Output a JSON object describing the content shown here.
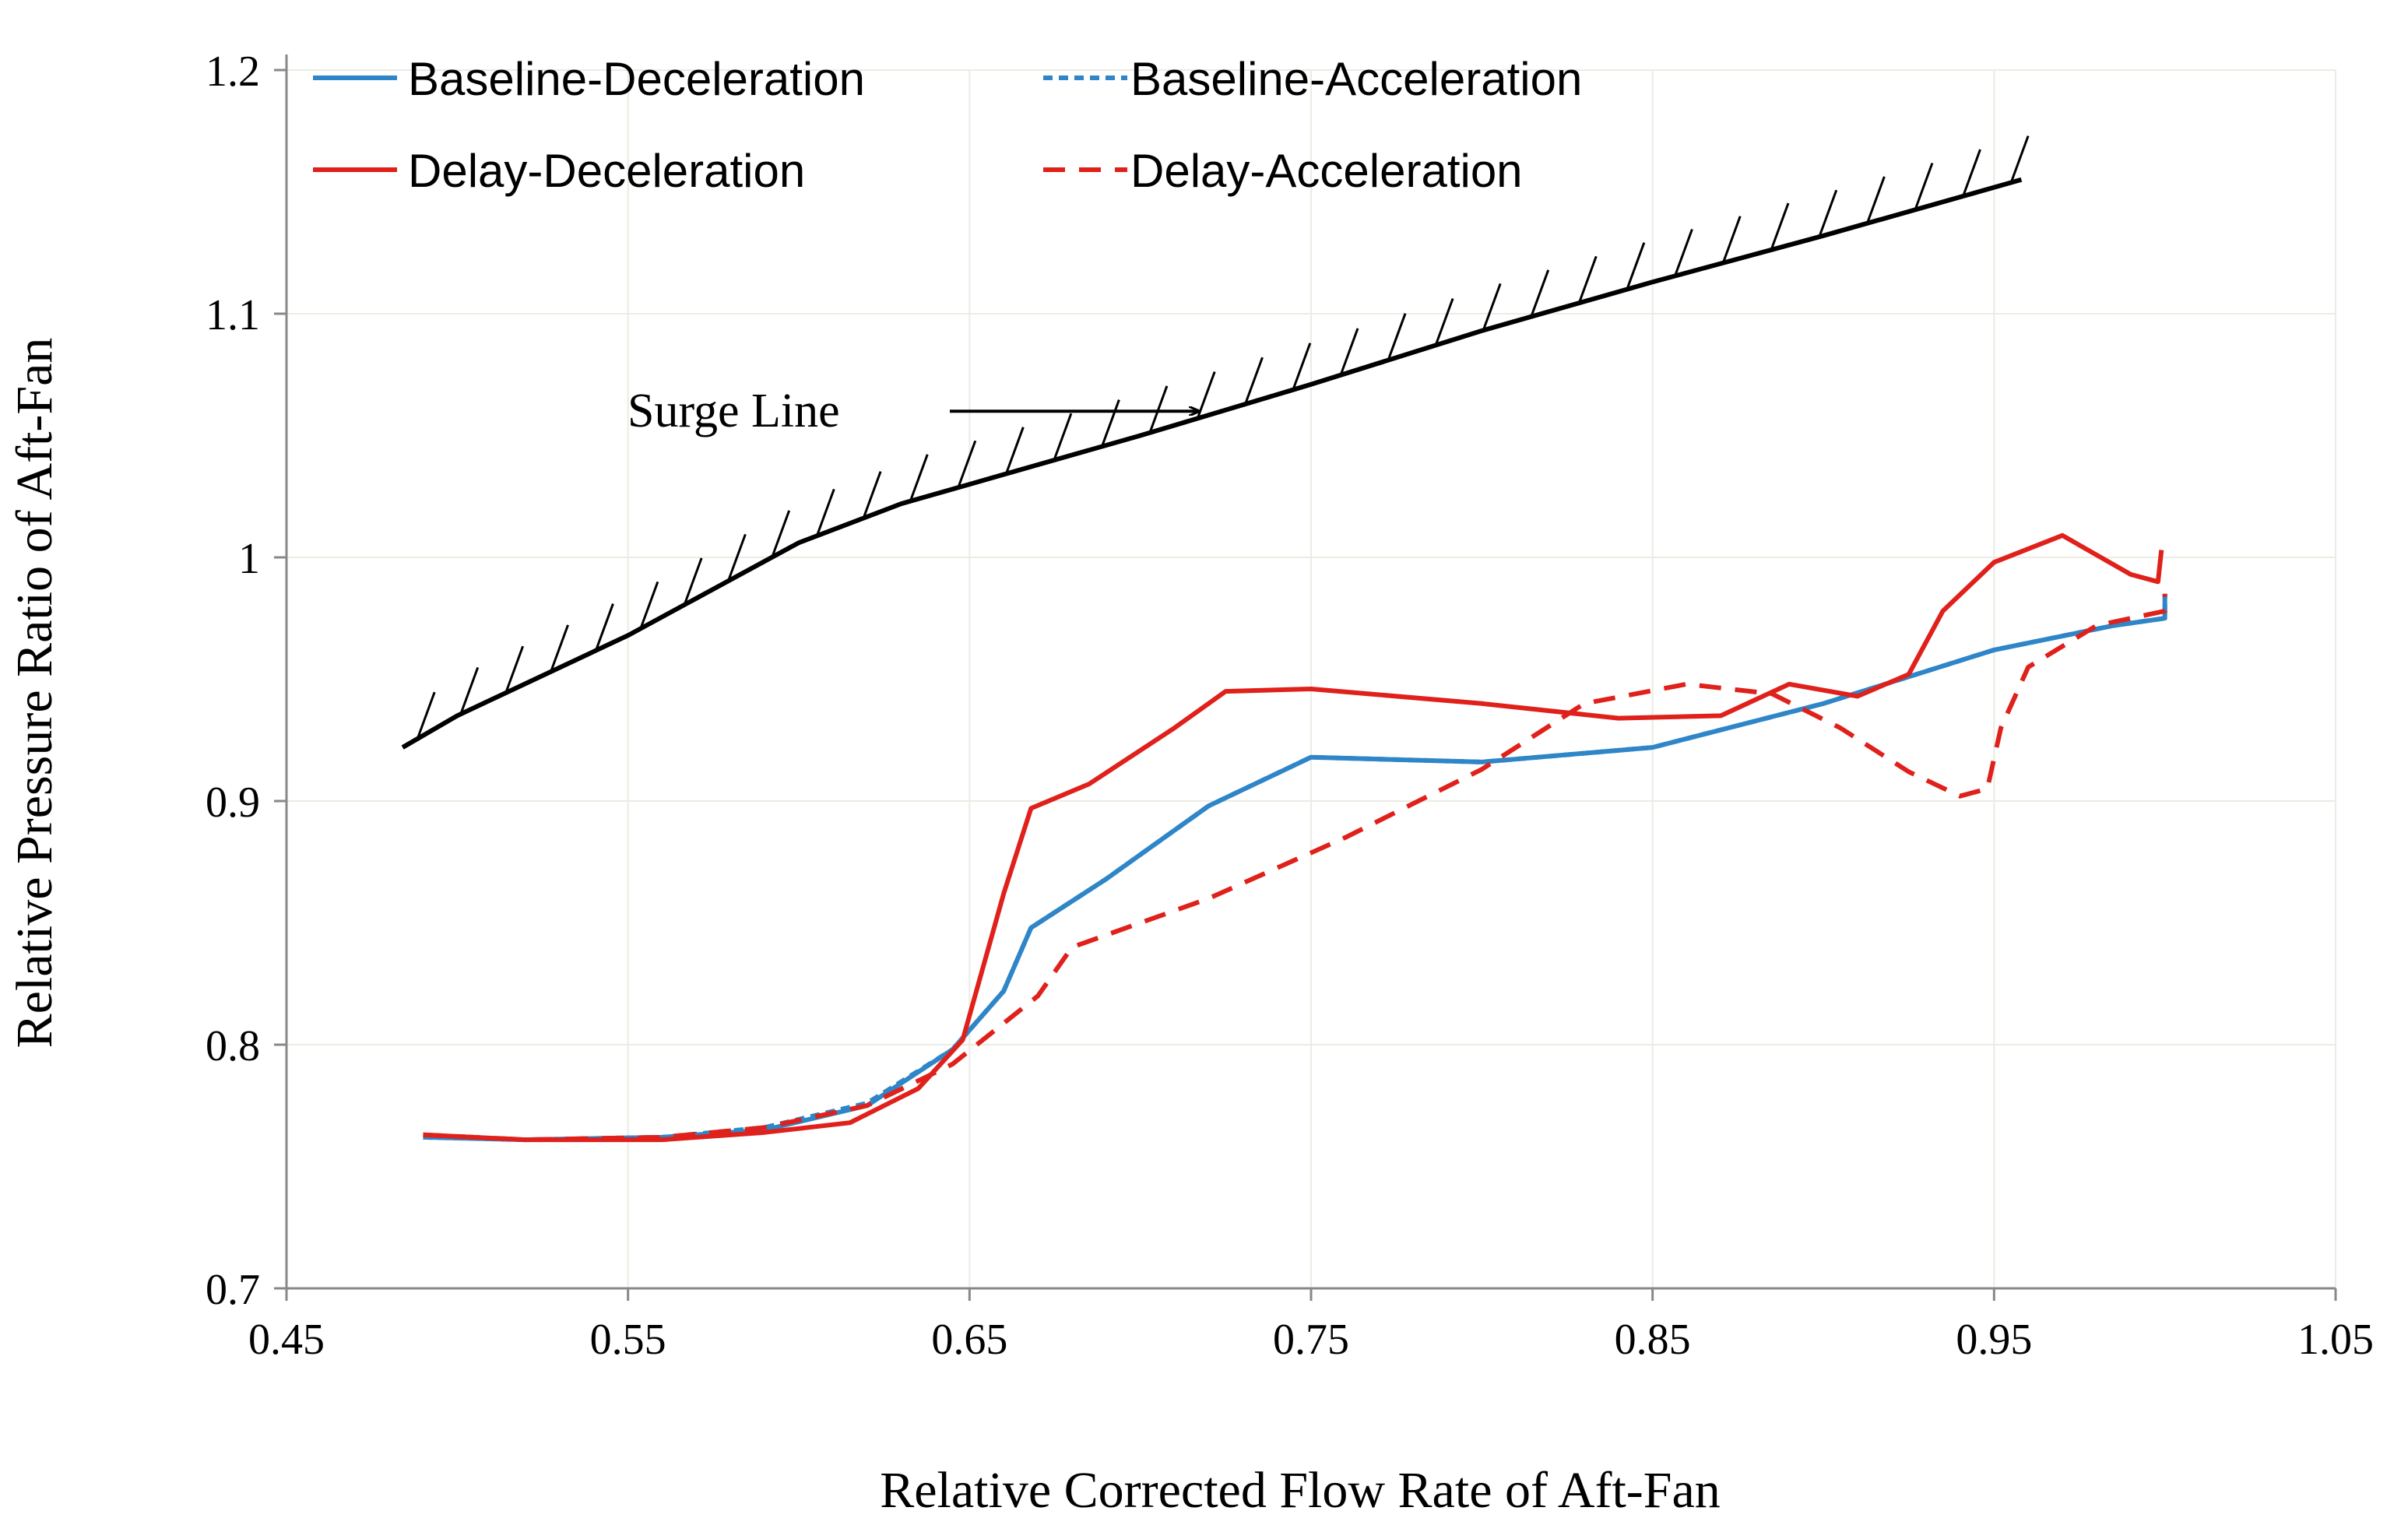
{
  "chart_data": {
    "type": "line",
    "title": "",
    "xlabel": "Relative Corrected Flow Rate of Aft-Fan",
    "ylabel": "Relative Pressure Ratio of Aft-Fan",
    "xlim": [
      0.45,
      1.05
    ],
    "ylim": [
      0.7,
      1.2
    ],
    "x_ticks": [
      0.45,
      0.55,
      0.65,
      0.75,
      0.85,
      0.95,
      1.05
    ],
    "x_tick_labels": [
      "0.45",
      "0.55",
      "0.65",
      "0.75",
      "0.85",
      "0.95",
      "1.05"
    ],
    "y_ticks": [
      0.7,
      0.8,
      0.9,
      1.0,
      1.1,
      1.2
    ],
    "y_tick_labels": [
      "0.7",
      "0.8",
      "0.9",
      "1",
      "1.1",
      "1.2"
    ],
    "grid": true,
    "legend_position": "top",
    "series": [
      {
        "name": "Baseline-Deceleration",
        "color": "#2e86c8",
        "style": "solid",
        "x": [
          0.49,
          0.52,
          0.56,
          0.59,
          0.62,
          0.645,
          0.66,
          0.668,
          0.69,
          0.72,
          0.75,
          0.8,
          0.85,
          0.9,
          0.95,
          0.985,
          1.0,
          1.0
        ],
        "y": [
          0.762,
          0.761,
          0.762,
          0.765,
          0.775,
          0.798,
          0.822,
          0.848,
          0.868,
          0.898,
          0.918,
          0.916,
          0.922,
          0.94,
          0.962,
          0.972,
          0.975,
          0.985
        ]
      },
      {
        "name": "Baseline-Acceleration",
        "color": "#2e86c8",
        "style": "dashed",
        "x": [
          0.49,
          0.52,
          0.56,
          0.59,
          0.62,
          0.645,
          0.66,
          0.668,
          0.69,
          0.72,
          0.75,
          0.8,
          0.85,
          0.9,
          0.95,
          0.985,
          1.0,
          1.0
        ],
        "y": [
          0.762,
          0.761,
          0.762,
          0.766,
          0.776,
          0.798,
          0.822,
          0.848,
          0.868,
          0.898,
          0.918,
          0.916,
          0.922,
          0.94,
          0.962,
          0.972,
          0.975,
          0.985
        ]
      },
      {
        "name": "Delay-Deceleration",
        "color": "#e0201b",
        "style": "solid",
        "x": [
          0.49,
          0.52,
          0.56,
          0.59,
          0.615,
          0.635,
          0.648,
          0.66,
          0.668,
          0.685,
          0.71,
          0.725,
          0.75,
          0.8,
          0.84,
          0.87,
          0.89,
          0.91,
          0.925,
          0.935,
          0.95,
          0.97,
          0.99,
          0.998,
          0.999
        ],
        "y": [
          0.763,
          0.761,
          0.761,
          0.764,
          0.768,
          0.782,
          0.802,
          0.862,
          0.897,
          0.907,
          0.93,
          0.945,
          0.946,
          0.94,
          0.934,
          0.935,
          0.948,
          0.943,
          0.952,
          0.978,
          0.998,
          1.009,
          0.993,
          0.99,
          1.003
        ]
      },
      {
        "name": "Delay-Acceleration",
        "color": "#e0201b",
        "style": "dashed",
        "x": [
          0.49,
          0.52,
          0.56,
          0.59,
          0.62,
          0.645,
          0.67,
          0.68,
          0.72,
          0.76,
          0.8,
          0.83,
          0.86,
          0.885,
          0.905,
          0.925,
          0.94,
          0.948,
          0.952,
          0.96,
          0.98,
          0.99,
          1.0,
          1.0
        ],
        "y": [
          0.763,
          0.761,
          0.762,
          0.766,
          0.775,
          0.792,
          0.82,
          0.84,
          0.86,
          0.885,
          0.913,
          0.94,
          0.948,
          0.944,
          0.93,
          0.912,
          0.902,
          0.905,
          0.93,
          0.955,
          0.972,
          0.975,
          0.978,
          0.985
        ]
      }
    ],
    "surge_line": {
      "label": "Surge Line",
      "x": [
        0.484,
        0.5,
        0.55,
        0.6,
        0.63,
        0.65,
        0.7,
        0.75,
        0.8,
        0.85,
        0.9,
        0.958
      ],
      "y": [
        0.922,
        0.935,
        0.968,
        1.006,
        1.022,
        1.03,
        1.05,
        1.071,
        1.093,
        1.113,
        1.132,
        1.155
      ]
    }
  },
  "legend": [
    {
      "label": "Baseline-Deceleration",
      "color": "#2e86c8",
      "style": "solid"
    },
    {
      "label": "Baseline-Acceleration",
      "color": "#2e86c8",
      "style": "dashed"
    },
    {
      "label": "Delay-Deceleration",
      "color": "#e0201b",
      "style": "solid"
    },
    {
      "label": "Delay-Acceleration",
      "color": "#e0201b",
      "style": "dashed"
    }
  ],
  "annotation": {
    "text": "Surge Line",
    "points_to": [
      0.717,
      1.06
    ]
  }
}
